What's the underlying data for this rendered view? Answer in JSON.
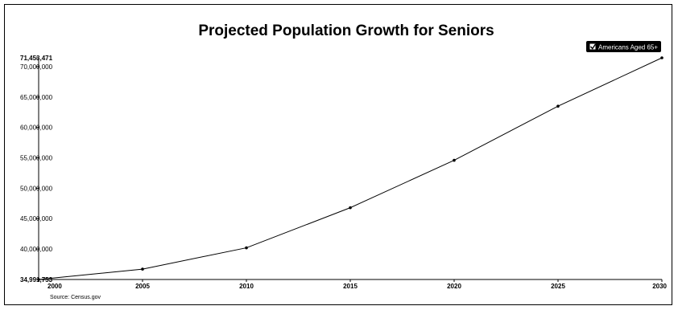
{
  "chart_data": {
    "type": "line",
    "title": "Projected Population Growth for Seniors",
    "source": "Source: Census.gov",
    "x": [
      "2000",
      "2005",
      "2010",
      "2015",
      "2020",
      "2025",
      "2030"
    ],
    "series": [
      {
        "name": "Americans Aged 65+",
        "values": [
          34991753,
          36700000,
          40200000,
          46800000,
          54600000,
          63500000,
          71453471
        ]
      }
    ],
    "ylim": [
      34991753,
      71453471
    ],
    "y_ticks": [
      {
        "label": "34,991,753",
        "value": 34991753,
        "bold": true
      },
      {
        "label": "40,000,000",
        "value": 40000000,
        "bold": false
      },
      {
        "label": "45,000,000",
        "value": 45000000,
        "bold": false
      },
      {
        "label": "50,000,000",
        "value": 50000000,
        "bold": false
      },
      {
        "label": "55,000,000",
        "value": 55000000,
        "bold": false
      },
      {
        "label": "60,000,000",
        "value": 60000000,
        "bold": false
      },
      {
        "label": "65,000,000",
        "value": 65000000,
        "bold": false
      },
      {
        "label": "70,000,000",
        "value": 70000000,
        "bold": false
      },
      {
        "label": "71,453,471",
        "value": 71453471,
        "bold": true
      }
    ],
    "grid": false,
    "legend_position": "top-right",
    "legend_checked": true,
    "line_color": "#000000"
  }
}
